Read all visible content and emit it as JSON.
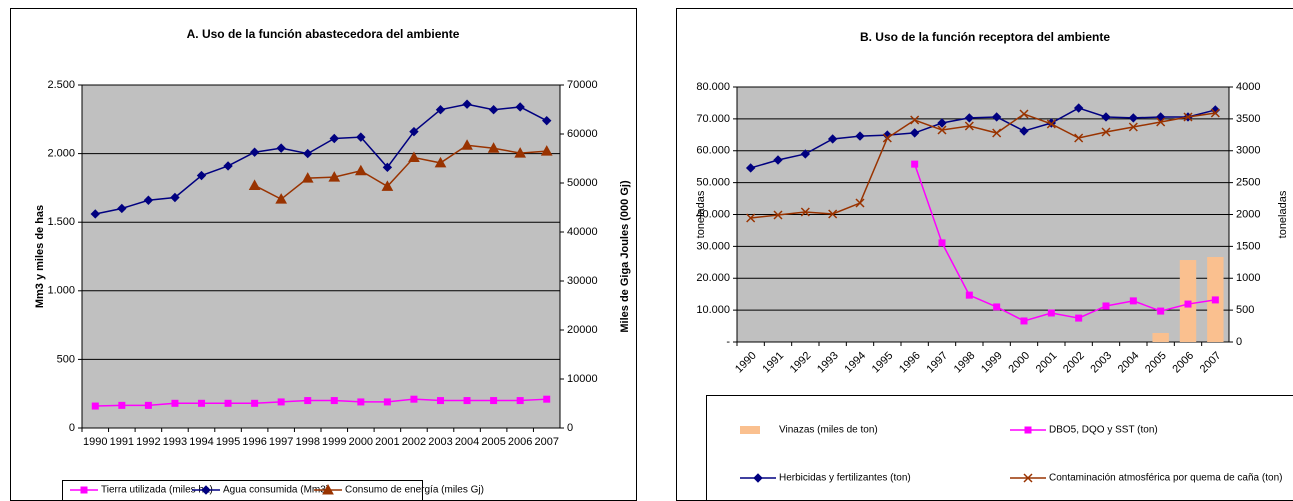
{
  "chart_data": [
    {
      "type": "line",
      "title": "A. Uso de la función abastecedora del ambiente",
      "y_label": "Mm3 y miles de has",
      "y2_label": "Miles de Giga Joules (000 Gj)",
      "categories": [
        "1990",
        "1991",
        "1992",
        "1993",
        "1994",
        "1995",
        "1996",
        "1997",
        "1998",
        "1999",
        "2000",
        "2001",
        "2002",
        "2003",
        "2004",
        "2005",
        "2006",
        "2007"
      ],
      "ylim": [
        0,
        2500
      ],
      "yticks": [
        0,
        500,
        {
          "value": 1000,
          "label": "1.000"
        },
        {
          "value": 1500,
          "label": "1.500"
        },
        {
          "value": 2000,
          "label": "2.000"
        },
        {
          "value": 2500,
          "label": "2.500"
        }
      ],
      "y2lim": [
        0,
        70000
      ],
      "y2ticks": [
        0,
        10000,
        20000,
        30000,
        40000,
        50000,
        60000,
        70000
      ],
      "grid": true,
      "legend": "bottom",
      "series": [
        {
          "name": "Tierra utilizada (miles ha)",
          "color": "#ff00ff",
          "marker": "square",
          "values": [
            160,
            165,
            165,
            180,
            180,
            180,
            180,
            190,
            200,
            200,
            190,
            190,
            210,
            200,
            200,
            200,
            200,
            210
          ]
        },
        {
          "name": "Agua consumida (Mm3)",
          "color": "#000080",
          "marker": "diamond",
          "values": [
            1560,
            1600,
            1660,
            1680,
            1840,
            1910,
            2010,
            2040,
            2000,
            2110,
            2120,
            1900,
            2160,
            2320,
            2360,
            2320,
            2340,
            2240
          ]
        },
        {
          "name": "Consumo de energía (miles Gj)",
          "color": "#993300",
          "marker": "triangle",
          "axis": "y2",
          "values": [
            null,
            null,
            null,
            null,
            null,
            null,
            49500,
            46700,
            51000,
            51200,
            52500,
            49300,
            55200,
            54100,
            57700,
            57100,
            56100,
            56500
          ]
        }
      ]
    },
    {
      "type": "line",
      "title": "B. Uso de la función receptora del ambiente",
      "y_label": "toneladas",
      "y2_label": "toneladas",
      "categories": [
        "1990",
        "1991",
        "1992",
        "1993",
        "1994",
        "1995",
        "1996",
        "1997",
        "1998",
        "1999",
        "2000",
        "2001",
        "2002",
        "2003",
        "2004",
        "2005",
        "2006",
        "2007"
      ],
      "ylim": [
        0,
        80000
      ],
      "yticks": [
        {
          "value": 0,
          "label": "-"
        },
        {
          "value": 10000,
          "label": "10.000"
        },
        {
          "value": 20000,
          "label": "20.000"
        },
        {
          "value": 30000,
          "label": "30.000"
        },
        {
          "value": 40000,
          "label": "40.000"
        },
        {
          "value": 50000,
          "label": "50.000"
        },
        {
          "value": 60000,
          "label": "60.000"
        },
        {
          "value": 70000,
          "label": "70.000"
        },
        {
          "value": 80000,
          "label": "80.000"
        }
      ],
      "y2lim": [
        0,
        4000
      ],
      "y2ticks": [
        0,
        500,
        1000,
        1500,
        2000,
        2500,
        3000,
        3500,
        4000
      ],
      "grid": true,
      "legend": "box",
      "series": [
        {
          "name": "Vinazas (miles de ton)",
          "color": "#fac08f",
          "type": "bar",
          "axis": "y2",
          "values": [
            null,
            null,
            null,
            null,
            null,
            null,
            null,
            null,
            null,
            null,
            null,
            null,
            null,
            null,
            null,
            141,
            1286,
            1333
          ]
        },
        {
          "name": "DBO5, DQO y SST (ton)",
          "color": "#ff00ff",
          "marker": "square",
          "values": [
            null,
            null,
            null,
            null,
            null,
            null,
            55800,
            31100,
            14700,
            11000,
            6600,
            9100,
            7500,
            11300,
            12900,
            9700,
            11900,
            13200
          ]
        },
        {
          "name": "Herbicidas y fertilizantes (ton)",
          "color": "#000080",
          "marker": "diamond",
          "values": [
            54600,
            57100,
            59000,
            63700,
            64600,
            64900,
            65600,
            68700,
            70300,
            70600,
            66200,
            68700,
            73400,
            70600,
            70300,
            70600,
            70600,
            72800
          ]
        },
        {
          "name": "Contaminación atmosférica por quema de caña (ton)",
          "color": "#993300",
          "marker": "x",
          "axis": "y2",
          "values": [
            1945,
            1992,
            2039,
            2008,
            2180,
            3200,
            3482,
            3325,
            3388,
            3278,
            3576,
            3420,
            3200,
            3294,
            3373,
            3451,
            3529,
            3592
          ]
        }
      ]
    }
  ]
}
